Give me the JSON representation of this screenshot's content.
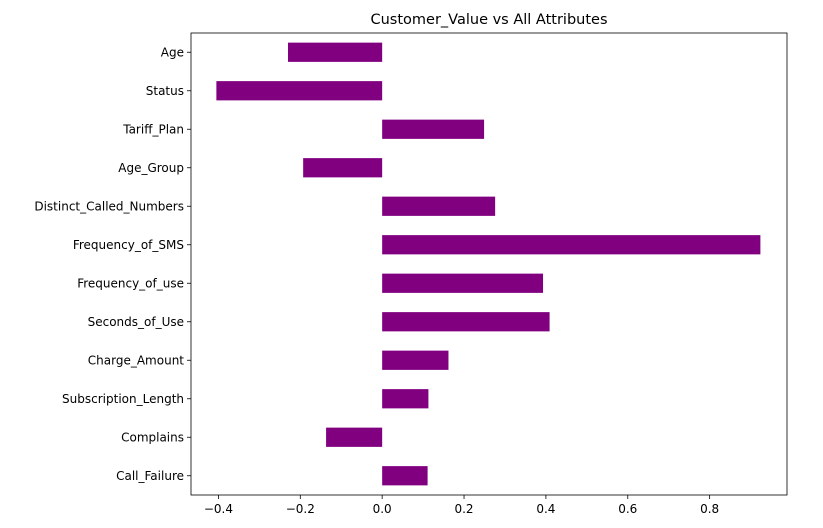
{
  "chart_data": {
    "type": "bar",
    "orientation": "horizontal",
    "title": "Customer_Value vs All Attributes",
    "xlabel": "",
    "ylabel": "",
    "categories": [
      "Age",
      "Status",
      "Tariff_Plan",
      "Age_Group",
      "Distinct_Called_Numbers",
      "Frequency_of_SMS",
      "Frequency_of_use",
      "Seconds_of_Use",
      "Charge_Amount",
      "Subscription_Length",
      "Complains",
      "Call_Failure"
    ],
    "values": [
      -0.23,
      -0.405,
      0.249,
      -0.193,
      0.276,
      0.924,
      0.393,
      0.409,
      0.162,
      0.113,
      -0.137,
      0.111
    ],
    "xlim": [
      -0.467,
      0.989
    ],
    "xticks": [
      -0.4,
      -0.2,
      0.0,
      0.2,
      0.4,
      0.6,
      0.8
    ],
    "xtick_labels": [
      "−0.4",
      "−0.2",
      "0.0",
      "0.2",
      "0.4",
      "0.6",
      "0.8"
    ],
    "bar_color": "#800080",
    "grid": false,
    "legend": "none"
  }
}
